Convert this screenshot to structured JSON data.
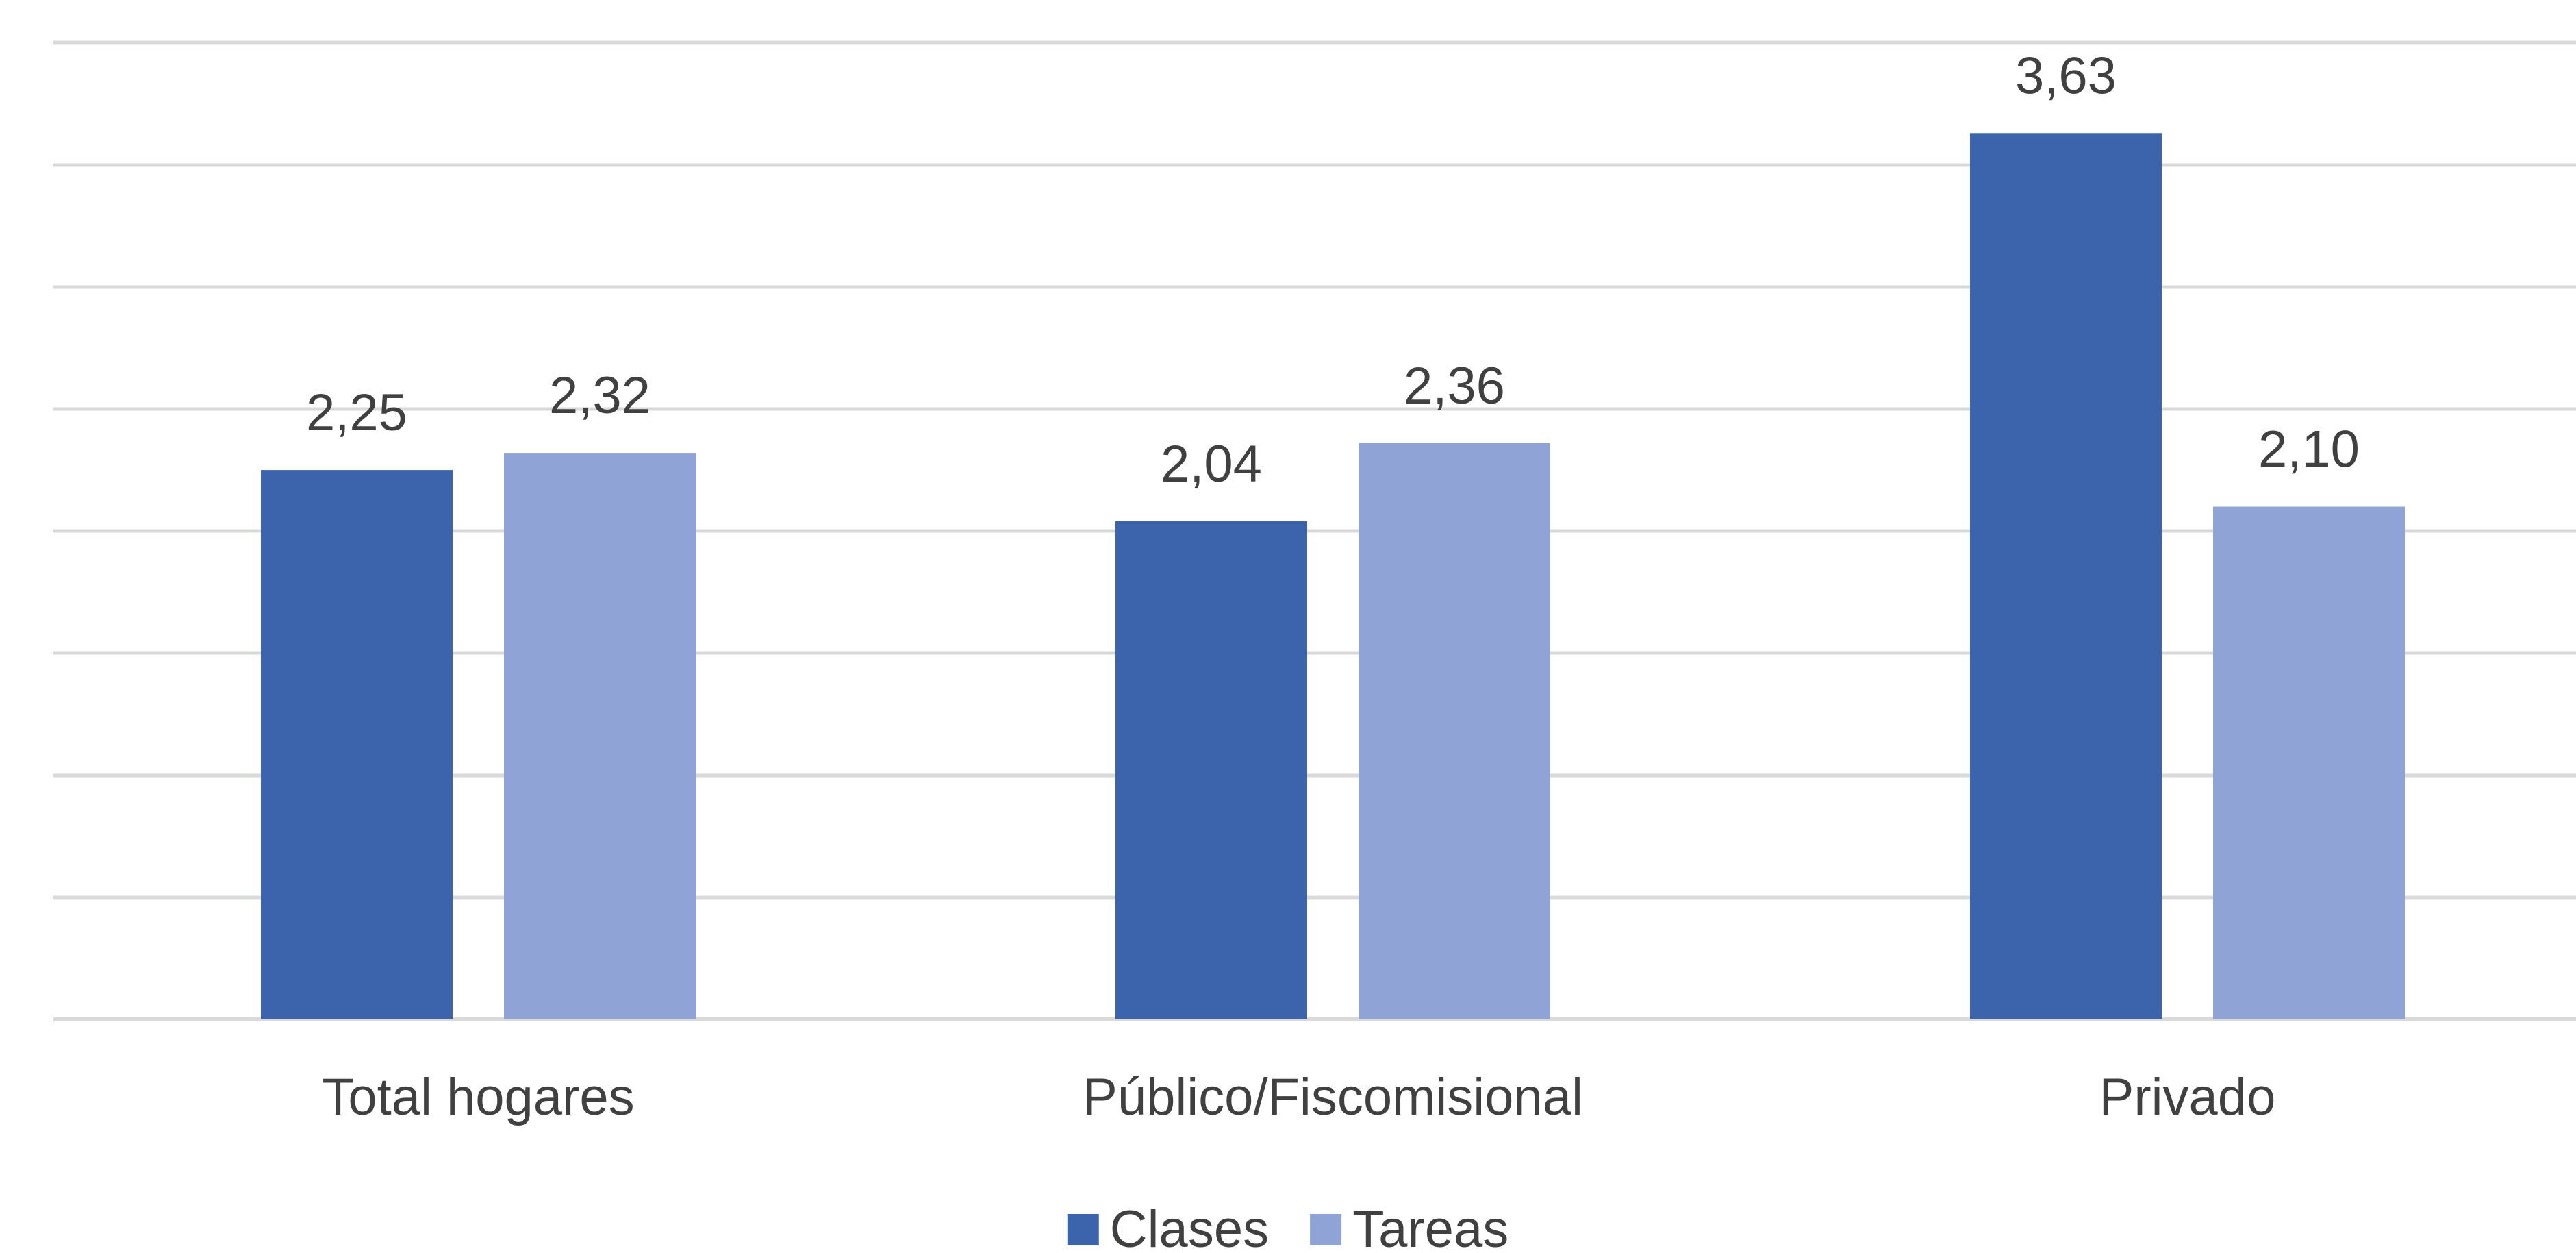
{
  "chart_data": {
    "type": "bar",
    "categories": [
      "Total hogares",
      "Público/Fiscomisional",
      "Privado"
    ],
    "series": [
      {
        "name": "Clases",
        "values": [
          2.25,
          2.04,
          3.63
        ],
        "labels": [
          "2,25",
          "2,04",
          "3,63"
        ],
        "color": "#3C64AD"
      },
      {
        "name": "Tareas",
        "values": [
          2.32,
          2.36,
          2.1
        ],
        "labels": [
          "2,32",
          "2,36",
          "2,10"
        ],
        "color": "#8FA3D6"
      }
    ],
    "title": "",
    "xlabel": "",
    "ylabel": "",
    "ylim": [
      0,
      4
    ],
    "grid": true,
    "gridline_count": 8,
    "y_ticks_visible": false,
    "legend_position": "bottom",
    "gridline_color": "#D9D9D9",
    "text_color": "#404040"
  }
}
